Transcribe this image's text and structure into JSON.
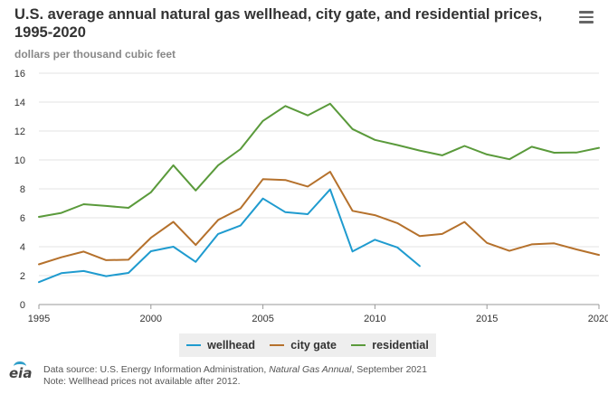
{
  "header": {
    "title": "U.S. average annual natural gas wellhead, city gate, and residential prices, 1995-2020",
    "unit": "dollars per thousand cubic feet"
  },
  "menu": {
    "icon": "hamburger-menu-icon"
  },
  "legend": [
    {
      "name": "wellhead",
      "color": "#1f9bcf"
    },
    {
      "name": "city gate",
      "color": "#b5712c"
    },
    {
      "name": "residential",
      "color": "#5a9a3b"
    }
  ],
  "footer": {
    "source_prefix": "Data source: U.S. Energy Information Administration, ",
    "source_publication": "Natural Gas Annual",
    "source_suffix": ", September 2021",
    "note": "Note: Wellhead prices not available after 2012.",
    "logo": "eia"
  },
  "chart_data": {
    "type": "line",
    "title": "U.S. average annual natural gas wellhead, city gate, and residential prices, 1995-2020",
    "ylabel": "dollars per thousand cubic feet",
    "xlabel": "",
    "xlim": [
      1995,
      2020
    ],
    "ylim": [
      0,
      16
    ],
    "xticks": [
      1995,
      2000,
      2005,
      2010,
      2015,
      2020
    ],
    "yticks": [
      0,
      2,
      4,
      6,
      8,
      10,
      12,
      14,
      16
    ],
    "grid": true,
    "legend_position": "bottom",
    "series": [
      {
        "name": "wellhead",
        "color": "#1f9bcf",
        "x": [
          1995,
          1996,
          1997,
          1998,
          1999,
          2000,
          2001,
          2002,
          2003,
          2004,
          2005,
          2006,
          2007,
          2008,
          2009,
          2010,
          2011,
          2012
        ],
        "values": [
          1.55,
          2.17,
          2.32,
          1.96,
          2.19,
          3.69,
          4.0,
          2.95,
          4.88,
          5.46,
          7.33,
          6.39,
          6.25,
          7.96,
          3.67,
          4.48,
          3.95,
          2.66
        ]
      },
      {
        "name": "city gate",
        "color": "#b5712c",
        "x": [
          1995,
          1996,
          1997,
          1998,
          1999,
          2000,
          2001,
          2002,
          2003,
          2004,
          2005,
          2006,
          2007,
          2008,
          2009,
          2010,
          2011,
          2012,
          2013,
          2014,
          2015,
          2016,
          2017,
          2018,
          2019,
          2020
        ],
        "values": [
          2.78,
          3.27,
          3.66,
          3.07,
          3.1,
          4.62,
          5.72,
          4.12,
          5.85,
          6.65,
          8.67,
          8.61,
          8.16,
          9.18,
          6.48,
          6.18,
          5.63,
          4.73,
          4.88,
          5.71,
          4.26,
          3.71,
          4.16,
          4.23,
          3.81,
          3.43
        ]
      },
      {
        "name": "residential",
        "color": "#5a9a3b",
        "x": [
          1995,
          1996,
          1997,
          1998,
          1999,
          2000,
          2001,
          2002,
          2003,
          2004,
          2005,
          2006,
          2007,
          2008,
          2009,
          2010,
          2011,
          2012,
          2013,
          2014,
          2015,
          2016,
          2017,
          2018,
          2019,
          2020
        ],
        "values": [
          6.06,
          6.34,
          6.94,
          6.82,
          6.69,
          7.76,
          9.63,
          7.89,
          9.63,
          10.75,
          12.7,
          13.73,
          13.08,
          13.89,
          12.14,
          11.39,
          11.03,
          10.65,
          10.32,
          10.97,
          10.38,
          10.05,
          10.91,
          10.5,
          10.51,
          10.84
        ]
      }
    ]
  }
}
